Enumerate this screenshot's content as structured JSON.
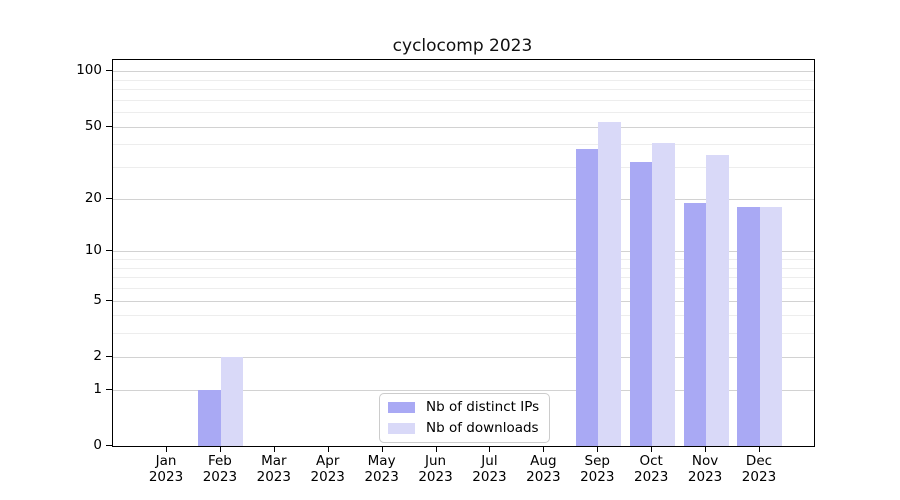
{
  "chart_data": {
    "type": "bar",
    "title": "cyclocomp 2023",
    "scale": "log1p",
    "categories": [
      "Jan",
      "Feb",
      "Mar",
      "Apr",
      "May",
      "Jun",
      "Jul",
      "Aug",
      "Sep",
      "Oct",
      "Nov",
      "Dec"
    ],
    "year_label": "2023",
    "series": [
      {
        "name": "Nb of distinct IPs",
        "color": "#a9a9f4",
        "values": [
          0,
          1,
          0,
          0,
          0,
          0,
          0,
          0,
          38,
          32,
          19,
          18
        ]
      },
      {
        "name": "Nb of downloads",
        "color": "#d9d9f8",
        "values": [
          0,
          2,
          0,
          0,
          0,
          0,
          0,
          0,
          53,
          41,
          35,
          18
        ]
      }
    ],
    "yticks_major": [
      0,
      1,
      2,
      5,
      10,
      20,
      50,
      100
    ],
    "yticks_minor": [
      3,
      4,
      6,
      7,
      8,
      9,
      30,
      40,
      60,
      70,
      80,
      90
    ],
    "ylim": [
      0,
      110
    ],
    "xlabel": "",
    "ylabel": "",
    "grid": "horizontal",
    "legend_position": "inside-bottom-center",
    "colors": {
      "axis": "#000000",
      "grid_major": "#d2d2d2",
      "grid_minor": "#ededed",
      "background": "#ffffff"
    }
  }
}
